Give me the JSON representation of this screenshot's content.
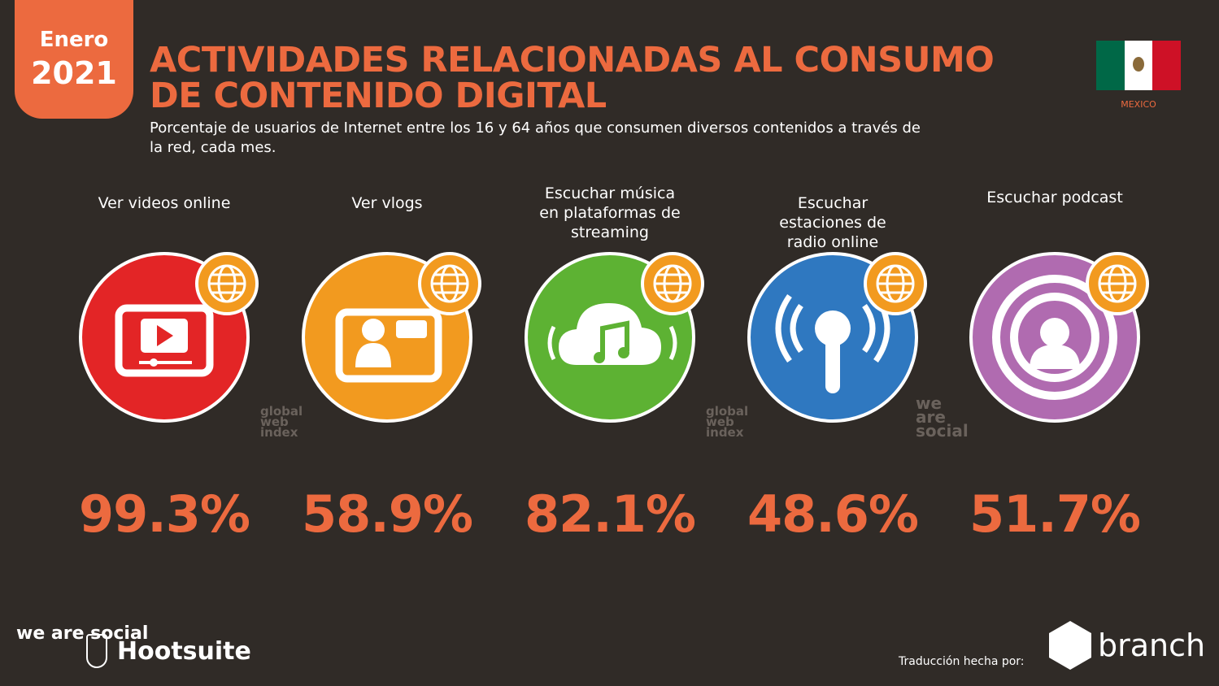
{
  "badge": {
    "month": "Enero",
    "year": "2021"
  },
  "header": {
    "title_line1": "ACTIVIDADES RELACIONADAS AL CONSUMO",
    "title_line2": "DE CONTENIDO DIGITAL",
    "subtitle": "Porcentaje de usuarios de Internet entre los 16 y 64 años que consumen diversos contenidos a través de la red, cada mes."
  },
  "flag": {
    "country": "MEXICO",
    "colors": [
      "#006847",
      "#ffffff",
      "#ce1126"
    ]
  },
  "accent": "#ec6a3f",
  "activities": [
    {
      "label": "Ver videos online",
      "value": "99.3%",
      "color": "#e32526",
      "icon": "video-player-icon"
    },
    {
      "label": "Ver vlogs",
      "value": "58.9%",
      "color": "#f29a1f",
      "icon": "vlog-icon"
    },
    {
      "label": "Escuchar música en plataformas de streaming",
      "value": "82.1%",
      "color": "#5db233",
      "icon": "music-cloud-icon"
    },
    {
      "label": "Escuchar estaciones de radio online",
      "value": "48.6%",
      "color": "#2f78c0",
      "icon": "radio-antenna-icon"
    },
    {
      "label": "Escuchar podcast",
      "value": "51.7%",
      "color": "#b06bb0",
      "icon": "podcast-icon"
    }
  ],
  "footer": {
    "brand1": "we are social",
    "brand2": "Hootsuite",
    "credit": "Traducción hecha por:",
    "translator": "branch"
  }
}
